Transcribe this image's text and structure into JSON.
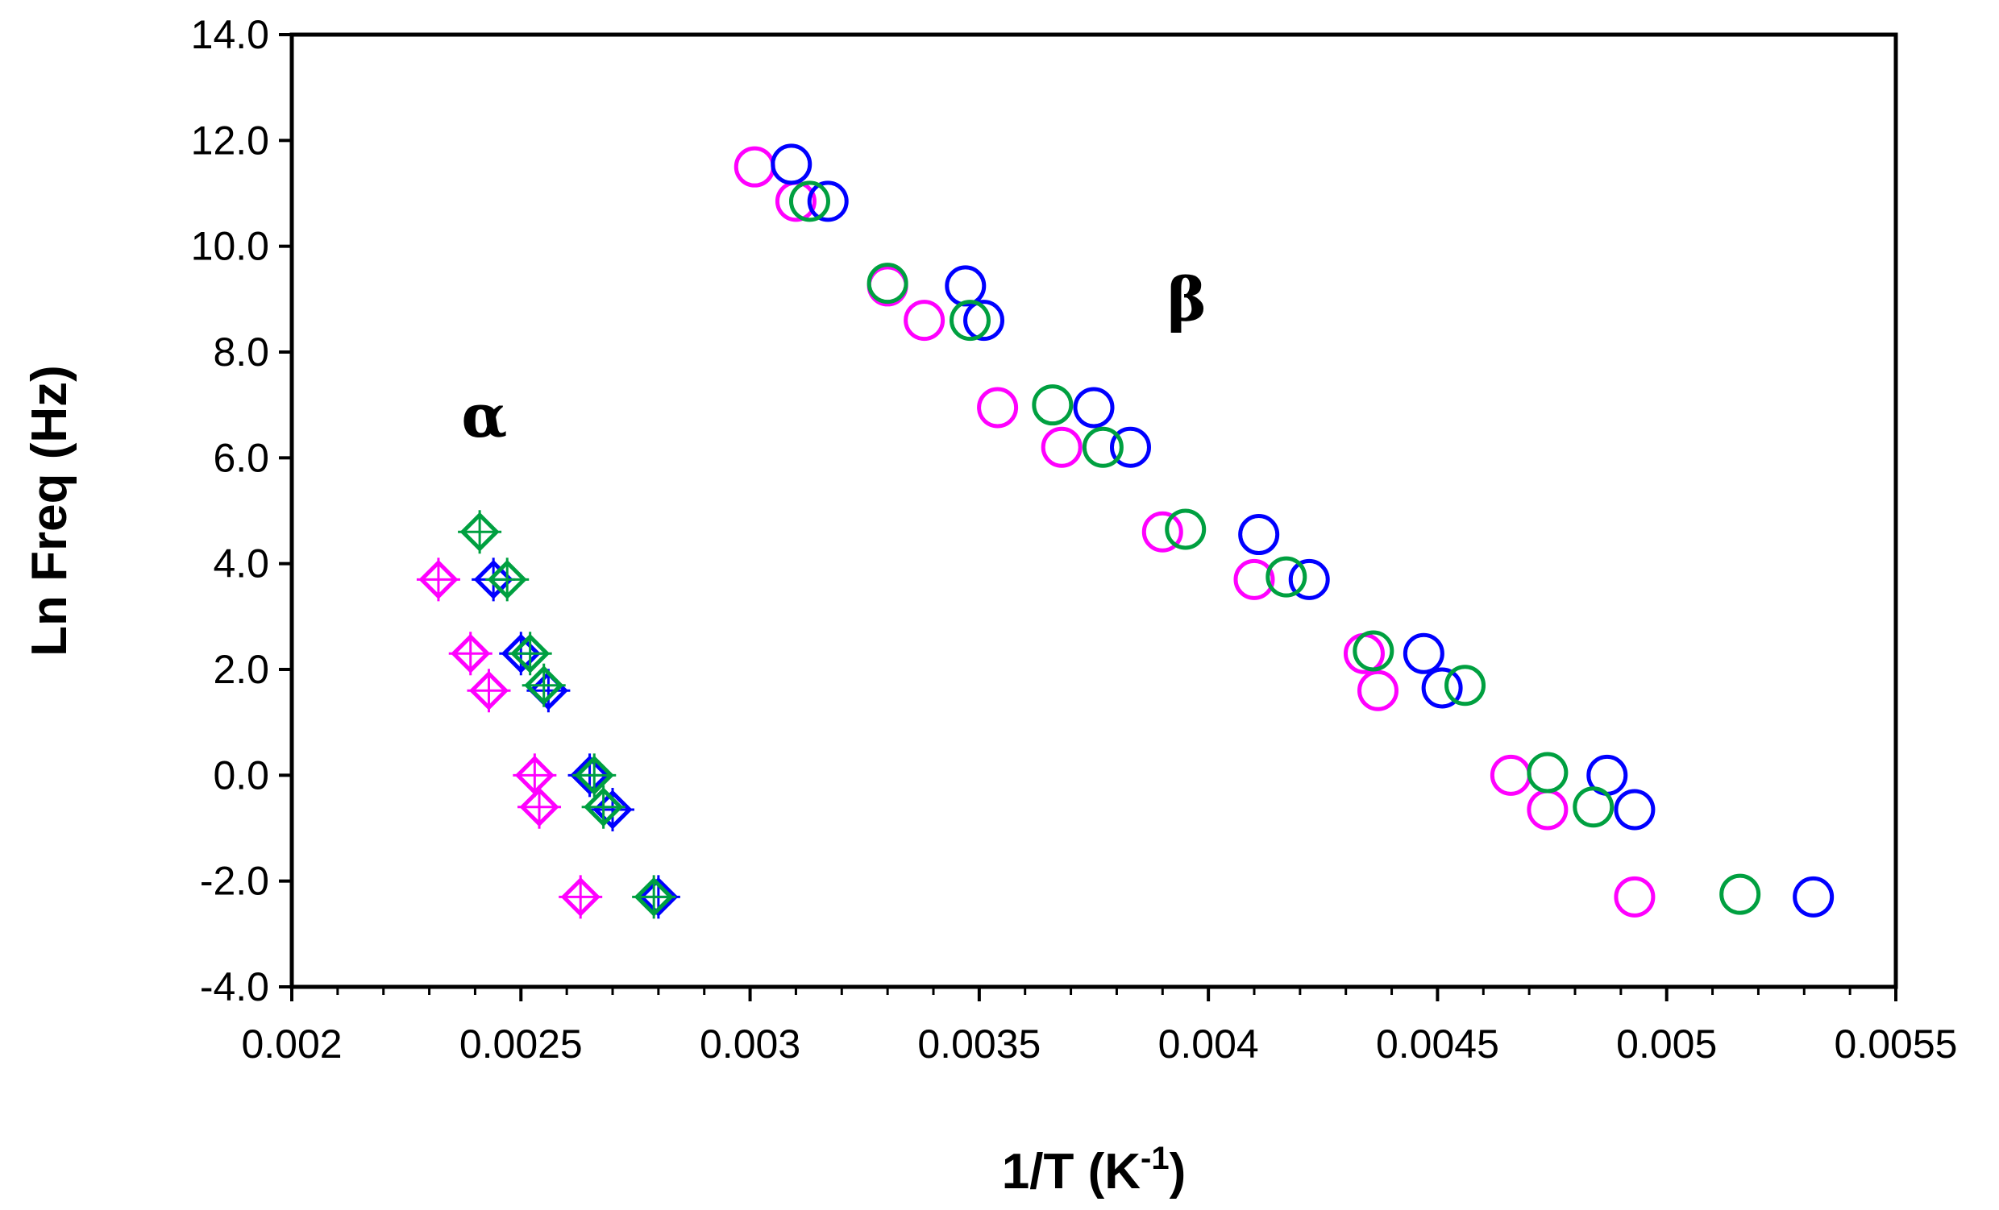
{
  "chart_data": {
    "type": "scatter",
    "title": "",
    "xlabel": "1/T (K",
    "xlabel_sup": "-1",
    "xlabel_end": ")",
    "ylabel": "Ln Freq (Hz)",
    "xlim": [
      0.002,
      0.0055
    ],
    "ylim": [
      -4.0,
      14.0
    ],
    "grid": false,
    "x_ticks": [
      "0.002",
      "0.0025",
      "0.003",
      "0.0035",
      "0.004",
      "0.0045",
      "0.005",
      "0.0055"
    ],
    "y_ticks": [
      "-4.0",
      "-2.0",
      "0.0",
      "2.0",
      "4.0",
      "6.0",
      "8.0",
      "10.0",
      "12.0",
      "14.0"
    ],
    "annotations": [
      {
        "name": "alpha",
        "text": "α",
        "x": 0.00237,
        "y": 6.4
      },
      {
        "name": "beta",
        "text": "β",
        "x": 0.00391,
        "y": 8.6
      }
    ],
    "series": [
      {
        "name": "alpha-magenta",
        "marker": "diamond",
        "color": "#ff00ff",
        "points": [
          [
            0.00232,
            3.7
          ],
          [
            0.00239,
            2.3
          ],
          [
            0.00243,
            1.6
          ],
          [
            0.00253,
            0.0
          ],
          [
            0.00254,
            -0.6
          ],
          [
            0.00263,
            -2.3
          ]
        ]
      },
      {
        "name": "alpha-blue",
        "marker": "diamond",
        "color": "#0000ff",
        "points": [
          [
            0.00244,
            3.7
          ],
          [
            0.0025,
            2.3
          ],
          [
            0.00256,
            1.6
          ],
          [
            0.00265,
            0.0
          ],
          [
            0.0027,
            -0.65
          ],
          [
            0.0028,
            -2.3
          ]
        ]
      },
      {
        "name": "alpha-green",
        "marker": "diamond",
        "color": "#00a040",
        "points": [
          [
            0.00241,
            4.6
          ],
          [
            0.00247,
            3.7
          ],
          [
            0.00252,
            2.3
          ],
          [
            0.00255,
            1.7
          ],
          [
            0.00266,
            0.0
          ],
          [
            0.00268,
            -0.6
          ],
          [
            0.00279,
            -2.3
          ]
        ]
      },
      {
        "name": "beta-magenta",
        "marker": "circle",
        "color": "#ff00ff",
        "points": [
          [
            0.00301,
            11.5
          ],
          [
            0.0031,
            10.85
          ],
          [
            0.0033,
            9.25
          ],
          [
            0.00338,
            8.6
          ],
          [
            0.00354,
            6.95
          ],
          [
            0.00368,
            6.2
          ],
          [
            0.0039,
            4.6
          ],
          [
            0.0041,
            3.7
          ],
          [
            0.00434,
            2.3
          ],
          [
            0.00437,
            1.6
          ],
          [
            0.00466,
            0.0
          ],
          [
            0.00474,
            -0.65
          ],
          [
            0.00493,
            -2.3
          ]
        ]
      },
      {
        "name": "beta-blue",
        "marker": "circle",
        "color": "#0000ff",
        "points": [
          [
            0.00309,
            11.55
          ],
          [
            0.00317,
            10.85
          ],
          [
            0.00347,
            9.25
          ],
          [
            0.00351,
            8.6
          ],
          [
            0.00375,
            6.95
          ],
          [
            0.00383,
            6.2
          ],
          [
            0.00411,
            4.55
          ],
          [
            0.00422,
            3.7
          ],
          [
            0.00447,
            2.3
          ],
          [
            0.00451,
            1.65
          ],
          [
            0.00487,
            0.0
          ],
          [
            0.00493,
            -0.65
          ],
          [
            0.00532,
            -2.3
          ]
        ]
      },
      {
        "name": "beta-green",
        "marker": "circle",
        "color": "#00a040",
        "points": [
          [
            0.00313,
            10.85
          ],
          [
            0.0033,
            9.3
          ],
          [
            0.00348,
            8.6
          ],
          [
            0.00366,
            7.0
          ],
          [
            0.00377,
            6.2
          ],
          [
            0.00395,
            4.65
          ],
          [
            0.00417,
            3.75
          ],
          [
            0.00436,
            2.35
          ],
          [
            0.00456,
            1.7
          ],
          [
            0.00474,
            0.05
          ],
          [
            0.00484,
            -0.6
          ],
          [
            0.00516,
            -2.25
          ]
        ]
      }
    ]
  }
}
